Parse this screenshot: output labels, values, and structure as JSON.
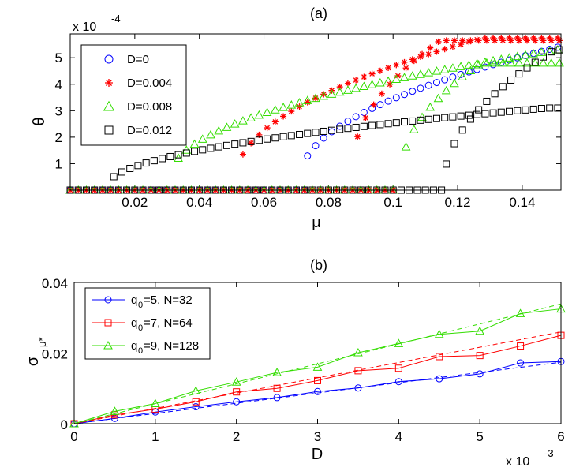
{
  "chart_data": [
    {
      "panel": "(a)",
      "type": "scatter",
      "title": "(a)",
      "xlabel": "μ",
      "ylabel": "θ",
      "y_exponent_label": "x 10",
      "y_exponent_power": "-4",
      "xlim": [
        0,
        0.152
      ],
      "ylim": [
        0,
        5.9
      ],
      "xticks": [
        0.02,
        0.04,
        0.06,
        0.08,
        0.1,
        0.12,
        0.14
      ],
      "xtick_labels": [
        "0.02",
        "0.04",
        "0.06",
        "0.08",
        "0.1",
        "0.12",
        "0.14"
      ],
      "yticks": [
        1,
        2,
        3,
        4,
        5
      ],
      "ytick_labels": [
        "1",
        "2",
        "3",
        "4",
        "5"
      ],
      "legend": [
        "D=0",
        "D=0.004",
        "D=0.008",
        "D=0.012"
      ],
      "series": [
        {
          "name": "D=0",
          "color": "#0000ff",
          "marker": "circle",
          "branches": [
            {
              "x0": 0.0,
              "x1": 0.0735,
              "step": 0.0025,
              "model": "zero"
            },
            {
              "x0": 0.0735,
              "x1": 0.1515,
              "step": 0.0025,
              "model": "sqrt",
              "mc": 0.0715,
              "k": 17.3,
              "a": 0.52,
              "cap": 5.82
            }
          ]
        },
        {
          "name": "D=0.004",
          "color": "#ff0000",
          "marker": "star",
          "branches": [
            {
              "x0": 0.0,
              "x1": 0.1015,
              "step": 0.0025,
              "model": "zero"
            },
            {
              "x0": 0.0535,
              "x1": 0.1515,
              "step": 0.0025,
              "model": "sqrt",
              "mc": 0.0515,
              "k": 19.0,
              "a": 0.5,
              "cap": 5.75
            },
            {
              "x0": 0.089,
              "x1": 0.1515,
              "step": 0.0025,
              "model": "sqrt",
              "mc": 0.0875,
              "k": 28.9,
              "a": 0.9,
              "cap": 5.65
            }
          ]
        },
        {
          "name": "D=0.008",
          "color": "#33dd00",
          "marker": "triangle",
          "branches": [
            {
              "x0": 0.0,
              "x1": 0.1015,
              "step": 0.0025,
              "model": "zero"
            },
            {
              "x0": 0.0335,
              "x1": 0.1515,
              "step": 0.0025,
              "model": "sqrt",
              "mc": 0.0315,
              "k": 13.6,
              "a": 0.6,
              "cap": 5.4
            },
            {
              "x0": 0.104,
              "x1": 0.1515,
              "step": 0.0025,
              "model": "sqrt",
              "mc": 0.1025,
              "k": 26.7,
              "a": 0.6,
              "cap": 4.8
            }
          ]
        },
        {
          "name": "D=0.012",
          "color": "#000000",
          "marker": "square",
          "branches": [
            {
              "x0": 0.0,
              "x1": 0.1152,
              "step": 0.0025,
              "model": "zero"
            },
            {
              "x0": 0.0135,
              "x1": 0.1515,
              "step": 0.0025,
              "model": "sqrt",
              "mc": 0.0115,
              "k": 8.0,
              "a": 0.15,
              "cap": 3.1
            },
            {
              "x0": 0.1165,
              "x1": 0.1515,
              "step": 0.0025,
              "model": "sqrt",
              "mc": 0.1155,
              "k": 28.0,
              "a": 0.1,
              "cap": 5.3
            }
          ]
        }
      ]
    },
    {
      "panel": "(b)",
      "type": "line",
      "title": "(b)",
      "xlabel": "D",
      "ylabel": "σ",
      "ylabel_sub": "μ*",
      "x_exponent_label": "x 10",
      "x_exponent_power": "-3",
      "xlim": [
        0,
        6
      ],
      "ylim": [
        0,
        0.04
      ],
      "xticks": [
        0,
        1,
        2,
        3,
        4,
        5,
        6
      ],
      "xtick_labels": [
        "0",
        "1",
        "2",
        "3",
        "4",
        "5",
        "6"
      ],
      "yticks": [
        0,
        0.02,
        0.04
      ],
      "ytick_labels": [
        "0",
        "0.02",
        "0.04"
      ],
      "x": [
        0,
        0.5,
        1,
        1.5,
        2,
        2.5,
        3,
        3.5,
        4,
        4.5,
        5,
        5.5,
        6
      ],
      "series": [
        {
          "name": "q0=5, N=32",
          "q": "5",
          "n_label": ", N=32",
          "color": "#0000ff",
          "marker": "circle",
          "values": [
            0,
            0.0015,
            0.0033,
            0.0048,
            0.0062,
            0.0074,
            0.0091,
            0.0101,
            0.0119,
            0.0127,
            0.0141,
            0.0172,
            0.0176
          ],
          "dashed_slope": 0.0029
        },
        {
          "name": "q0=7, N=64",
          "q": "7",
          "n_label": ", N=64",
          "color": "#ff0000",
          "marker": "square",
          "values": [
            0,
            0.0025,
            0.0041,
            0.0062,
            0.009,
            0.01,
            0.0122,
            0.015,
            0.0157,
            0.019,
            0.0193,
            0.022,
            0.025
          ],
          "dashed_slope": 0.00433
        },
        {
          "name": "q0=9, N=128",
          "q": "9",
          "n_label": ", N=128",
          "color": "#33dd00",
          "marker": "triangle",
          "values": [
            0,
            0.0035,
            0.0057,
            0.0093,
            0.0118,
            0.0145,
            0.016,
            0.0201,
            0.0227,
            0.0253,
            0.0262,
            0.0312,
            0.0325
          ],
          "dashed_slope": 0.00565
        }
      ]
    }
  ]
}
